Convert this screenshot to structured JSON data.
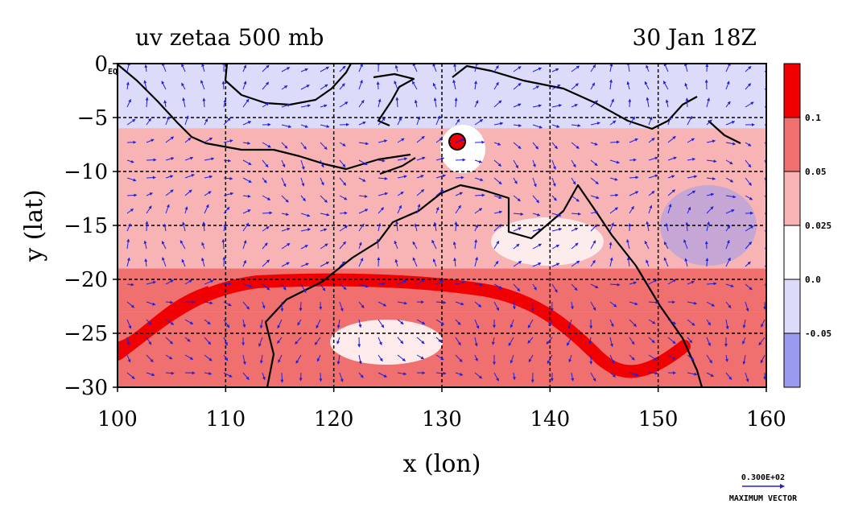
{
  "chart_data": {
    "type": "heatmap",
    "title": "uv zetaa 500 mb",
    "time_label": "30 Jan 18Z",
    "xlabel": "x (lon)",
    "ylabel": "y (lat)",
    "xlim": [
      100,
      160
    ],
    "ylim": [
      -30,
      0
    ],
    "x_ticks": [
      100,
      110,
      120,
      130,
      140,
      150,
      160
    ],
    "y_ticks": [
      0,
      -5,
      -10,
      -15,
      -20,
      -25,
      -30
    ],
    "y_tick_labels": [
      "0",
      "−5",
      "−10",
      "−15",
      "−20",
      "−25",
      "−30"
    ],
    "eq_label": "EQ",
    "grid": true,
    "grid_x": [
      110,
      120,
      130,
      140,
      150
    ],
    "grid_y": [
      -5,
      -10,
      -15,
      -20,
      -25
    ],
    "colorbar": {
      "levels": [
        "0.1",
        "0.05",
        "0.025",
        "0.0",
        "-0.05"
      ],
      "colors": [
        "#f00000",
        "#f07070",
        "#f8b4b4",
        "#ffffff",
        "#dcdcfa",
        "#9a9af0"
      ]
    },
    "field_bands": [
      {
        "lat": [
          0,
          -6
        ],
        "level": 4
      },
      {
        "lat": [
          -6,
          -9
        ],
        "level": 2
      },
      {
        "lat": [
          -9,
          -19
        ],
        "level": 2
      },
      {
        "lat": [
          -19,
          -23
        ],
        "level": 1
      },
      {
        "lat": [
          -23,
          -30
        ],
        "level": 1
      }
    ],
    "vector_legend": {
      "value": "0.300E+02",
      "label": "MAXIMUM VECTOR"
    }
  }
}
